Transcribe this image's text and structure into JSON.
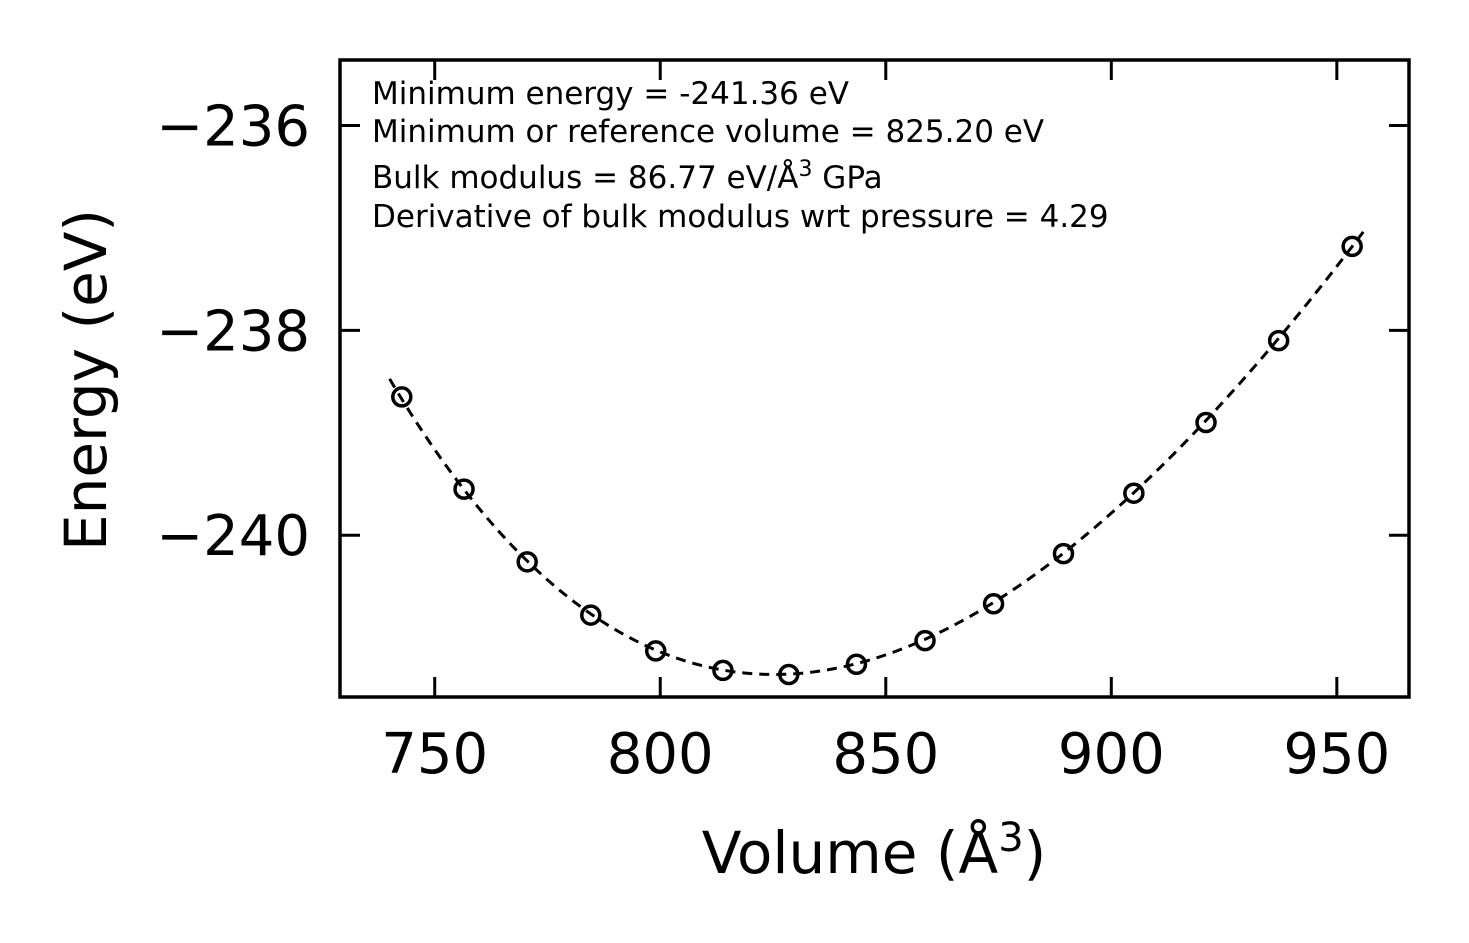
{
  "chart_data": {
    "type": "scatter",
    "title": "",
    "xlabel": "Volume (Å³)",
    "xlabel_parts": {
      "base": "Volume (Å",
      "sup": "3",
      "tail": ")"
    },
    "ylabel": "Energy (eV)",
    "xlim": [
      729,
      966
    ],
    "ylim": [
      -241.58,
      -235.36
    ],
    "xticks": [
      750,
      800,
      850,
      900,
      950
    ],
    "yticks": [
      -236,
      -238,
      -240
    ],
    "xtick_labels": [
      "750",
      "800",
      "850",
      "900",
      "950"
    ],
    "ytick_labels": [
      "−236",
      "−238",
      "−240"
    ],
    "series": [
      {
        "name": "data",
        "style": "open-circle",
        "color": "#000000",
        "x": [
          742.7,
          756.5,
          770.5,
          784.6,
          799.0,
          813.9,
          828.5,
          843.5,
          858.7,
          873.9,
          889.4,
          905.0,
          921.0,
          937.1,
          953.4
        ],
        "y": [
          -238.65,
          -239.55,
          -240.26,
          -240.78,
          -241.13,
          -241.32,
          -241.36,
          -241.26,
          -241.03,
          -240.67,
          -240.18,
          -239.59,
          -238.9,
          -238.1,
          -237.18
        ]
      },
      {
        "name": "fit",
        "style": "dashed-line",
        "color": "#000000",
        "V0": 825.2,
        "E0": -241.36,
        "B": 86.77,
        "Bp": 4.29,
        "x_range": [
          740,
          956
        ]
      }
    ],
    "annotations": [
      "Minimum energy = -241.36 eV",
      "Minimum or reference volume = 825.20 eV"
    ],
    "annotation_bulk": {
      "base": "Bulk modulus = 86.77 eV/Å",
      "sup": "3",
      "tail": " GPa"
    },
    "annotation_deriv": "Derivative of bulk modulus wrt pressure = 4.29"
  }
}
